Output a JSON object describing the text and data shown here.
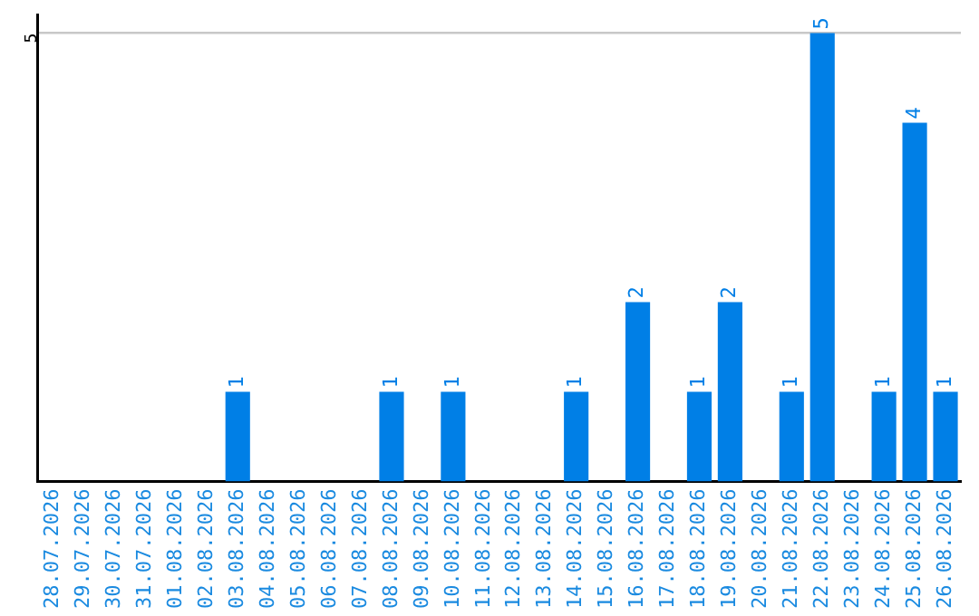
{
  "chart_data": {
    "type": "bar",
    "categories": [
      "28.07.2026",
      "29.07.2026",
      "30.07.2026",
      "31.07.2026",
      "01.08.2026",
      "02.08.2026",
      "03.08.2026",
      "04.08.2026",
      "05.08.2026",
      "06.08.2026",
      "07.08.2026",
      "08.08.2026",
      "09.08.2026",
      "10.08.2026",
      "11.08.2026",
      "12.08.2026",
      "13.08.2026",
      "14.08.2026",
      "15.08.2026",
      "16.08.2026",
      "17.08.2026",
      "18.08.2026",
      "19.08.2026",
      "20.08.2026",
      "21.08.2026",
      "22.08.2026",
      "23.08.2026",
      "24.08.2026",
      "25.08.2026",
      "26.08.2026"
    ],
    "values": [
      0,
      0,
      0,
      0,
      0,
      0,
      1,
      0,
      0,
      0,
      0,
      1,
      0,
      1,
      0,
      0,
      0,
      1,
      0,
      2,
      0,
      1,
      2,
      0,
      1,
      5,
      0,
      1,
      4,
      1
    ],
    "value_labels": [
      null,
      null,
      null,
      null,
      null,
      null,
      "1",
      null,
      null,
      null,
      null,
      "1",
      null,
      "1",
      null,
      null,
      null,
      "1",
      null,
      "2",
      null,
      "1",
      "2",
      null,
      "1",
      "5",
      null,
      "1",
      "4",
      "1"
    ],
    "color": "#007fe6",
    "ylim": [
      0,
      5.2
    ],
    "yticks": [
      5
    ],
    "grid": "y",
    "legend": false
  }
}
